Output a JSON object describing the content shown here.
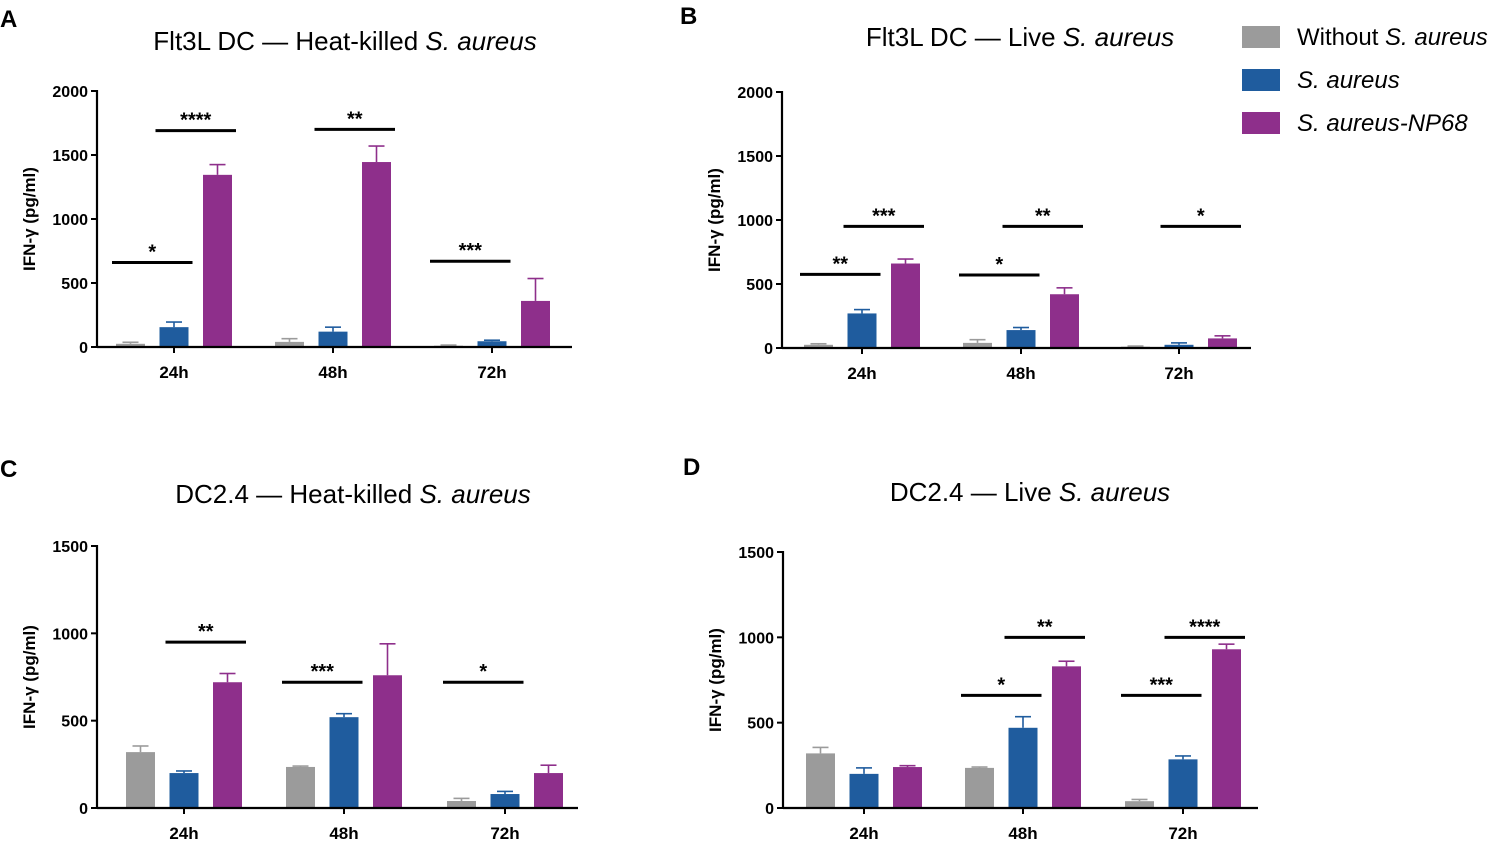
{
  "colors": {
    "without": "#9b9b9b",
    "saureus": "#1f5c9e",
    "np68": "#8e2f8b"
  },
  "legend": {
    "items": [
      {
        "key": "without",
        "prefix": "Without ",
        "italic": "S. aureus",
        "color": "#9b9b9b"
      },
      {
        "key": "saureus",
        "prefix": "",
        "italic": "S. aureus",
        "color": "#1f5c9e"
      },
      {
        "key": "np68",
        "prefix": "",
        "italic": "S. aureus-NP68",
        "color": "#8e2f8b"
      }
    ]
  },
  "chart_data": [
    {
      "letter": "A",
      "type": "bar",
      "title_prefix": "Flt3L DC — Heat-killed ",
      "title_italic": "S. aureus",
      "ylabel": "IFN-γ (pg/ml)",
      "ylim": [
        0,
        2000
      ],
      "yticks": [
        "0",
        "500",
        "1000",
        "1500",
        "2000"
      ],
      "categories": [
        "24h",
        "48h",
        "72h"
      ],
      "series": [
        {
          "name": "Without S. aureus",
          "values": [
            25,
            40,
            10
          ],
          "errors": [
            12,
            25,
            5
          ]
        },
        {
          "name": "S. aureus",
          "values": [
            155,
            120,
            45
          ],
          "errors": [
            40,
            35,
            8
          ]
        },
        {
          "name": "S. aureus-NP68",
          "values": [
            1345,
            1445,
            360
          ],
          "errors": [
            80,
            125,
            175
          ]
        }
      ],
      "significance": [
        {
          "label": "*",
          "group": 0,
          "from": 0,
          "to": 1,
          "y": 660
        },
        {
          "label": "****",
          "group": 0,
          "from": 1,
          "to": 2,
          "y": 1690
        },
        {
          "label": "**",
          "group": 1,
          "from": 1,
          "to": 2,
          "y": 1700
        },
        {
          "label": "***",
          "group": 2,
          "from": 0,
          "to": 1,
          "y": 670
        }
      ]
    },
    {
      "letter": "B",
      "type": "bar",
      "title_prefix": "Flt3L DC — Live ",
      "title_italic": "S. aureus",
      "ylabel": "IFN-γ (pg/ml)",
      "ylim": [
        0,
        2000
      ],
      "yticks": [
        "0",
        "500",
        "1000",
        "1500",
        "2000"
      ],
      "categories": [
        "24h",
        "48h",
        "72h"
      ],
      "series": [
        {
          "name": "Without S. aureus",
          "values": [
            25,
            40,
            10
          ],
          "errors": [
            8,
            25,
            5
          ]
        },
        {
          "name": "S. aureus",
          "values": [
            270,
            140,
            25
          ],
          "errors": [
            30,
            20,
            15
          ]
        },
        {
          "name": "S. aureus-NP68",
          "values": [
            660,
            420,
            75
          ],
          "errors": [
            35,
            50,
            20
          ]
        }
      ],
      "significance": [
        {
          "label": "**",
          "group": 0,
          "from": 0,
          "to": 1,
          "y": 575
        },
        {
          "label": "***",
          "group": 0,
          "from": 1,
          "to": 2,
          "y": 950
        },
        {
          "label": "*",
          "group": 1,
          "from": 0,
          "to": 1,
          "y": 570
        },
        {
          "label": "**",
          "group": 1,
          "from": 1,
          "to": 2,
          "y": 950
        },
        {
          "label": "*",
          "group": 2,
          "from": 1,
          "to": 2,
          "y": 950
        }
      ]
    },
    {
      "letter": "C",
      "type": "bar",
      "title_prefix": "DC2.4 — Heat-killed ",
      "title_italic": "S. aureus",
      "ylabel": "IFN-γ (pg/ml)",
      "ylim": [
        0,
        1500
      ],
      "yticks": [
        "0",
        "500",
        "1000",
        "1500"
      ],
      "categories": [
        "24h",
        "48h",
        "72h"
      ],
      "series": [
        {
          "name": "Without S. aureus",
          "values": [
            320,
            235,
            40
          ],
          "errors": [
            35,
            5,
            15
          ]
        },
        {
          "name": "S. aureus",
          "values": [
            200,
            520,
            80
          ],
          "errors": [
            12,
            20,
            15
          ]
        },
        {
          "name": "S. aureus-NP68",
          "values": [
            720,
            760,
            200
          ],
          "errors": [
            50,
            180,
            45
          ]
        }
      ],
      "significance": [
        {
          "label": "**",
          "group": 0,
          "from": 1,
          "to": 2,
          "y": 950
        },
        {
          "label": "***",
          "group": 1,
          "from": 0,
          "to": 1,
          "y": 720
        },
        {
          "label": "*",
          "group": 2,
          "from": 0,
          "to": 1,
          "y": 720
        }
      ]
    },
    {
      "letter": "D",
      "type": "bar",
      "title_prefix": "DC2.4 — Live ",
      "title_italic": "S. aureus",
      "ylabel": "IFN-γ (pg/ml)",
      "ylim": [
        0,
        1500
      ],
      "yticks": [
        "0",
        "500",
        "1000",
        "1500"
      ],
      "categories": [
        "24h",
        "48h",
        "72h"
      ],
      "series": [
        {
          "name": "Without S. aureus",
          "values": [
            320,
            235,
            40
          ],
          "errors": [
            35,
            5,
            10
          ]
        },
        {
          "name": "S. aureus",
          "values": [
            200,
            470,
            285
          ],
          "errors": [
            35,
            65,
            20
          ]
        },
        {
          "name": "S. aureus-NP68",
          "values": [
            240,
            830,
            930
          ],
          "errors": [
            8,
            30,
            30
          ]
        }
      ],
      "significance": [
        {
          "label": "*",
          "group": 1,
          "from": 0,
          "to": 1,
          "y": 660
        },
        {
          "label": "**",
          "group": 1,
          "from": 1,
          "to": 2,
          "y": 1000
        },
        {
          "label": "***",
          "group": 2,
          "from": 0,
          "to": 1,
          "y": 660
        },
        {
          "label": "****",
          "group": 2,
          "from": 1,
          "to": 2,
          "y": 1000
        }
      ]
    }
  ]
}
